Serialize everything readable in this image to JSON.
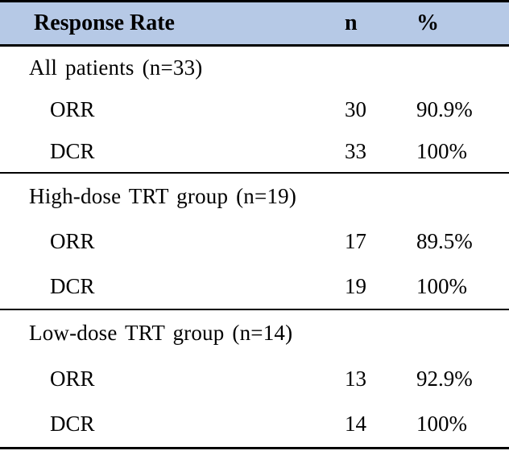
{
  "table": {
    "colors": {
      "header_bg": "#b6c9e6",
      "border": "#000000"
    },
    "header": {
      "label": "Response Rate",
      "n": "n",
      "pct": "%"
    },
    "sections": [
      {
        "heading": "All patients (n=33)",
        "rows": [
          {
            "label": "ORR",
            "n": "30",
            "pct": "90.9%"
          },
          {
            "label": "DCR",
            "n": "33",
            "pct": "100%"
          }
        ]
      },
      {
        "heading": "High-dose TRT group (n=19)",
        "rows": [
          {
            "label": "ORR",
            "n": "17",
            "pct": "89.5%"
          },
          {
            "label": "DCR",
            "n": "19",
            "pct": "100%"
          }
        ]
      },
      {
        "heading": "Low-dose TRT group (n=14)",
        "rows": [
          {
            "label": "ORR",
            "n": "13",
            "pct": "92.9%"
          },
          {
            "label": "DCR",
            "n": "14",
            "pct": "100%"
          }
        ]
      }
    ]
  }
}
